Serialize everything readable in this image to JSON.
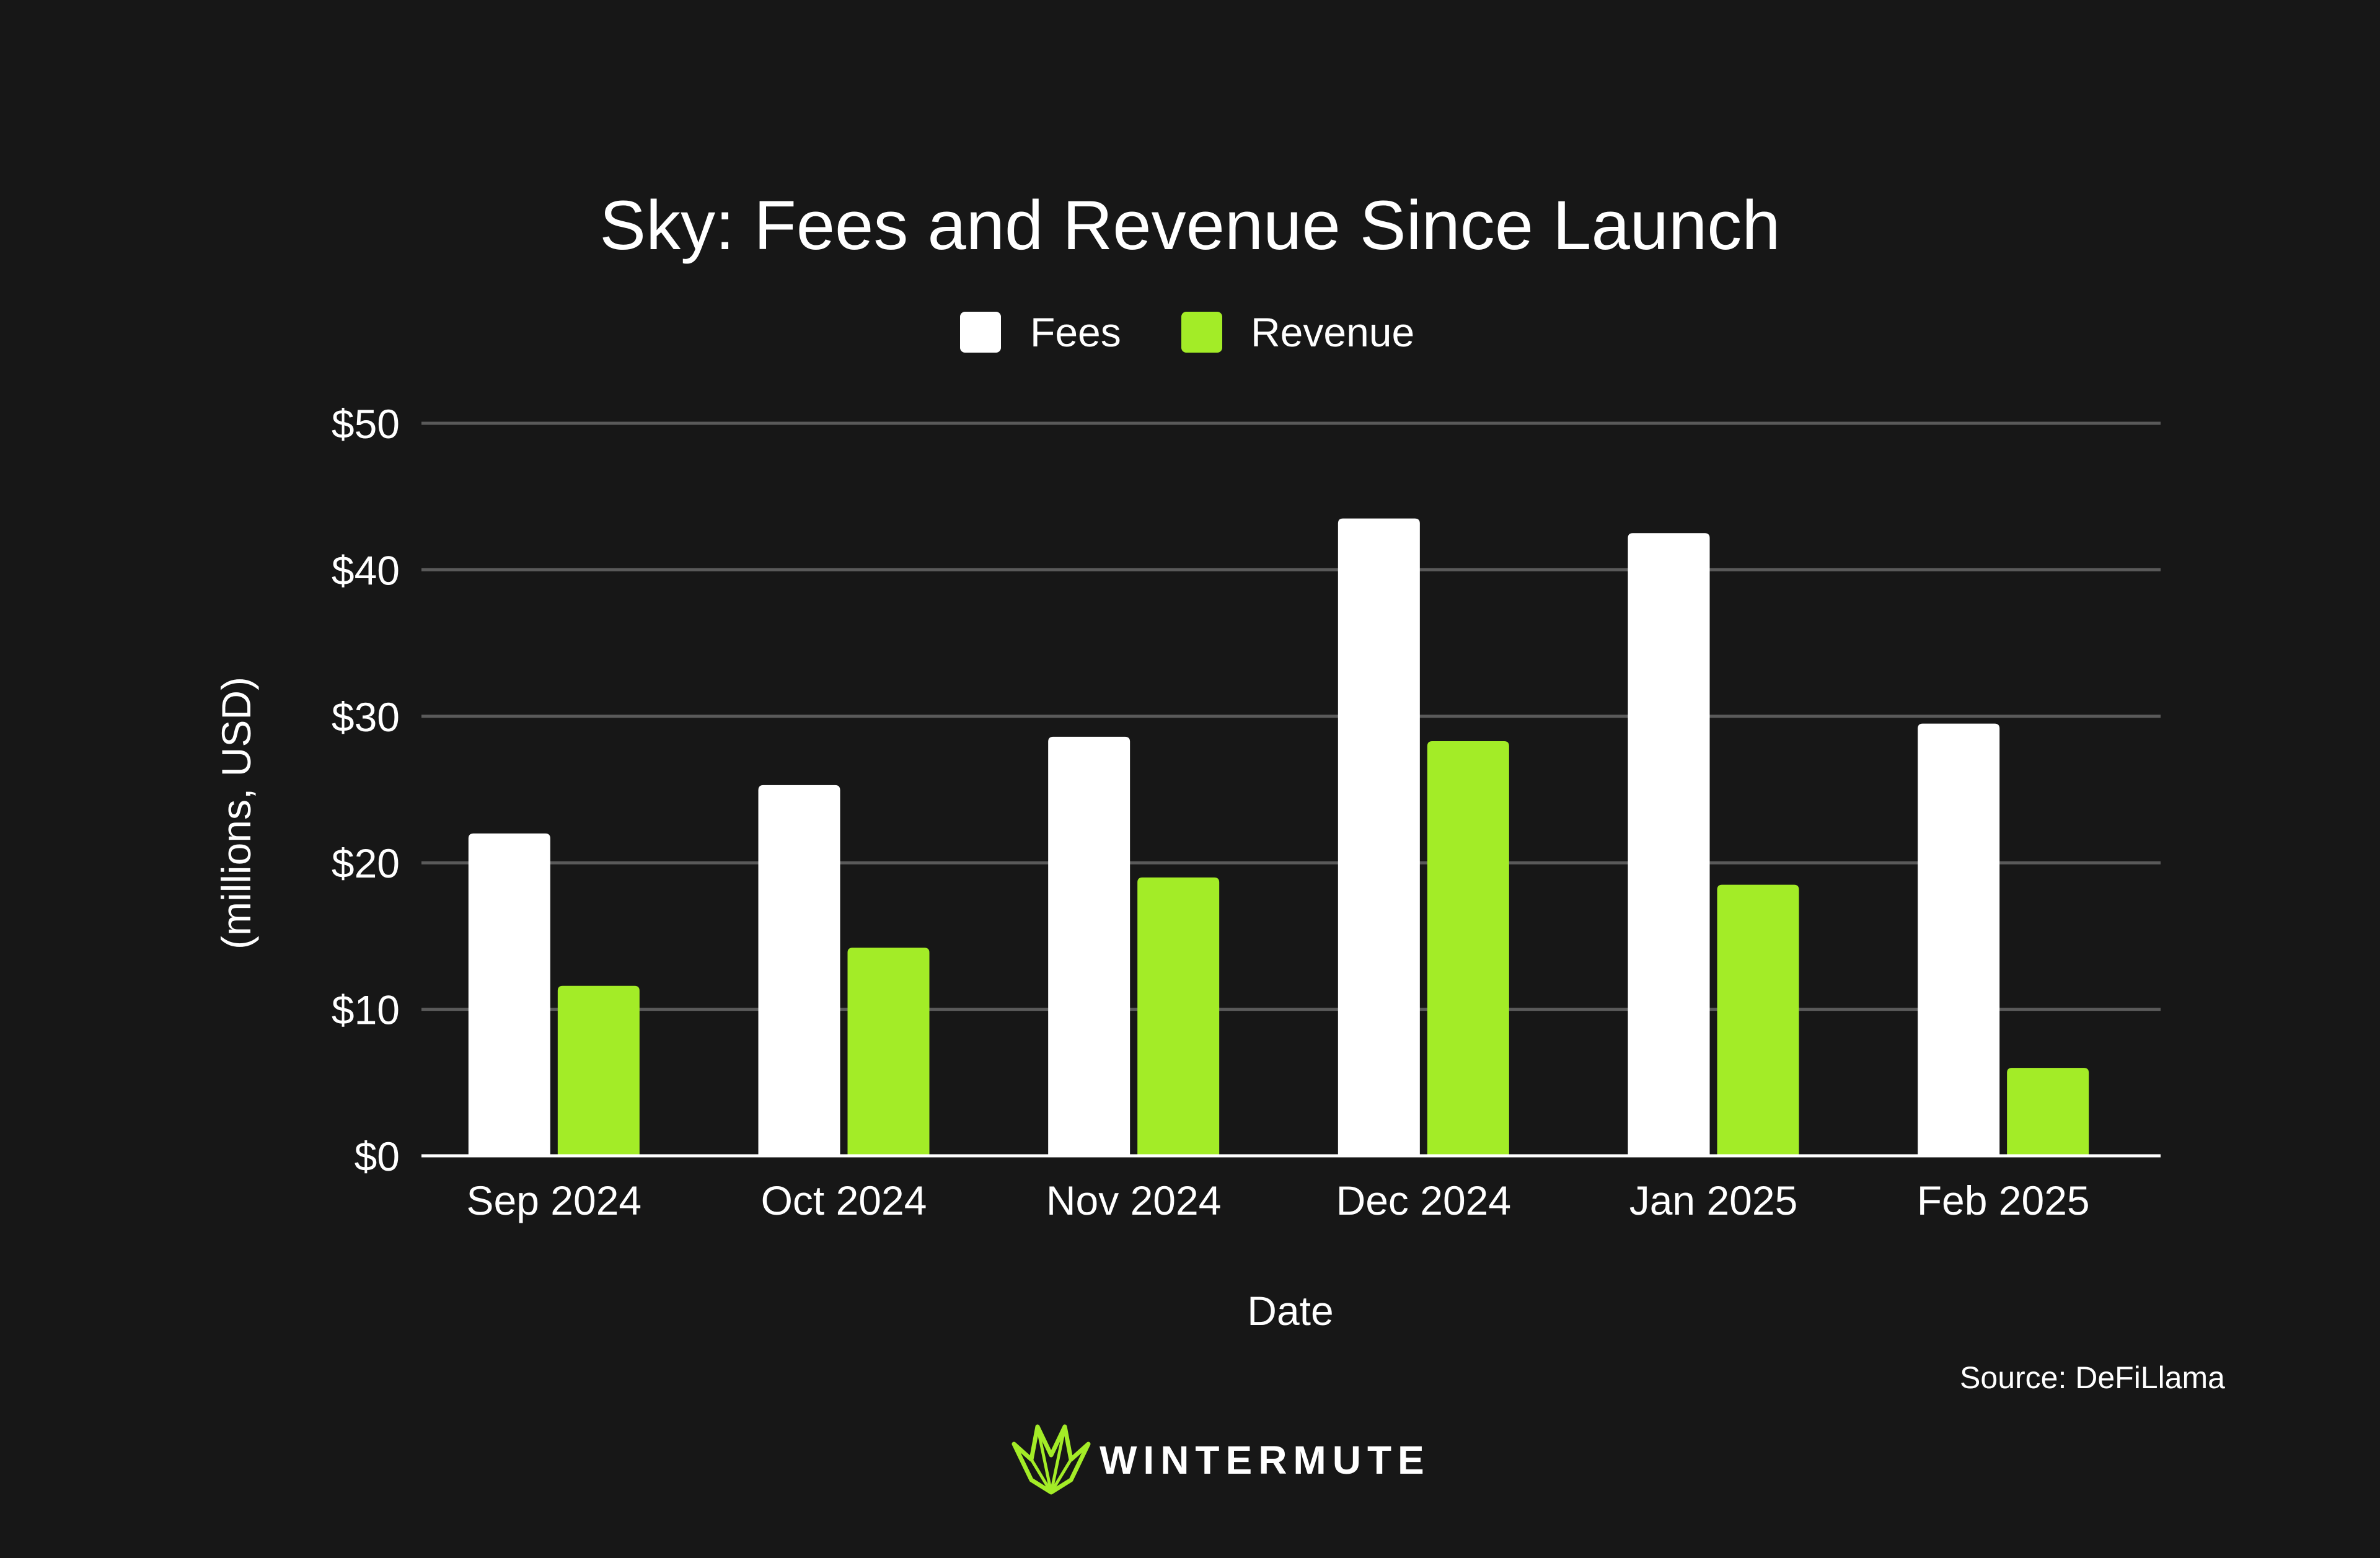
{
  "chart_data": {
    "type": "bar",
    "title": "Sky: Fees and Revenue Since Launch",
    "xlabel": "Date",
    "ylabel": "(millions, USD)",
    "categories": [
      "Sep 2024",
      "Oct 2024",
      "Nov 2024",
      "Dec 2024",
      "Jan 2025",
      "Feb 2025"
    ],
    "series": [
      {
        "name": "Fees",
        "color": "#ffffff",
        "values": [
          22.0,
          25.3,
          28.6,
          43.5,
          42.5,
          29.5
        ]
      },
      {
        "name": "Revenue",
        "color": "#a3ec27",
        "values": [
          11.6,
          14.2,
          19.0,
          28.3,
          18.5,
          6.0
        ]
      }
    ],
    "ylim": [
      0,
      50
    ],
    "yticks": [
      0,
      10,
      20,
      30,
      40,
      50
    ],
    "ytick_labels": [
      "$0",
      "$10",
      "$20",
      "$30",
      "$40",
      "$50"
    ],
    "grid": true,
    "legend_position": "top-center"
  },
  "source": "Source: DeFiLlama",
  "brand": {
    "name": "WINTERMUTE",
    "icon": "wintermute-logo-icon",
    "accent_color": "#a3ec27"
  },
  "colors": {
    "background": "#171717",
    "gridline": "#5a5a5a",
    "axis": "#ffffff"
  }
}
